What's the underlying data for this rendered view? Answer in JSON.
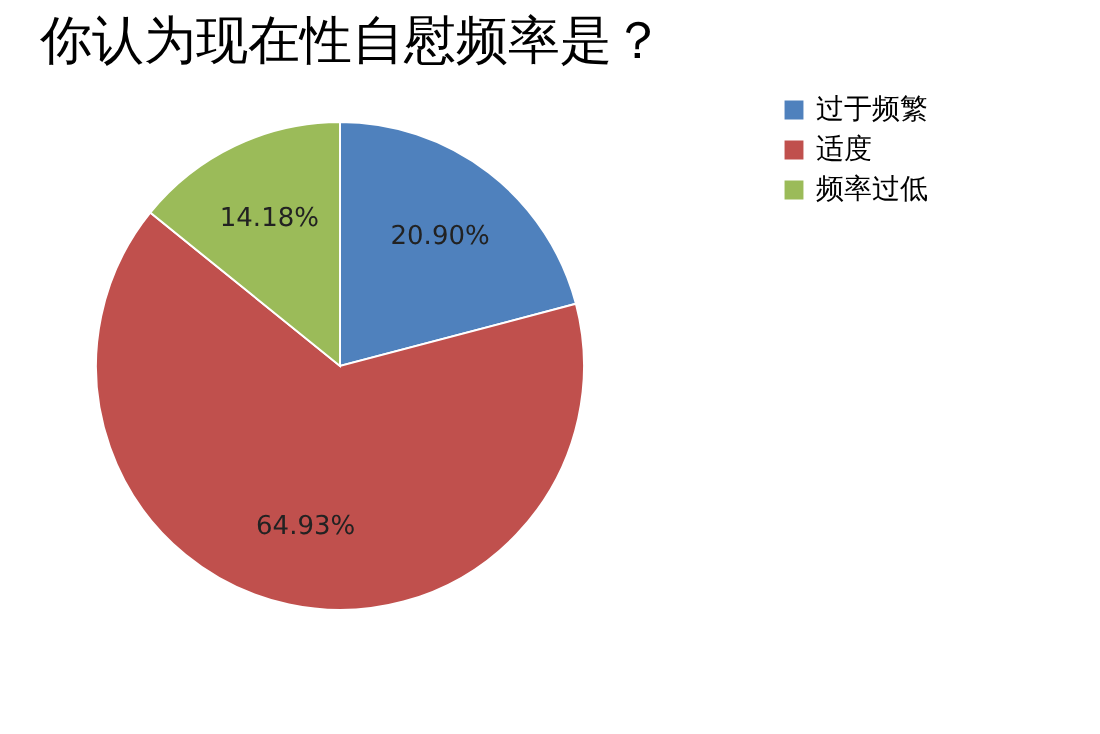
{
  "chart_data": {
    "type": "pie",
    "title": "你认为现在性自慰频率是？",
    "categories": [
      "过于频繁",
      "适度",
      "频率过低"
    ],
    "values": [
      20.9,
      64.93,
      14.18
    ],
    "colors": [
      "#4f81bd",
      "#c0504d",
      "#9bbb59"
    ],
    "value_labels": [
      "20.90%",
      "64.93%",
      "14.18%"
    ],
    "legend": "right"
  }
}
